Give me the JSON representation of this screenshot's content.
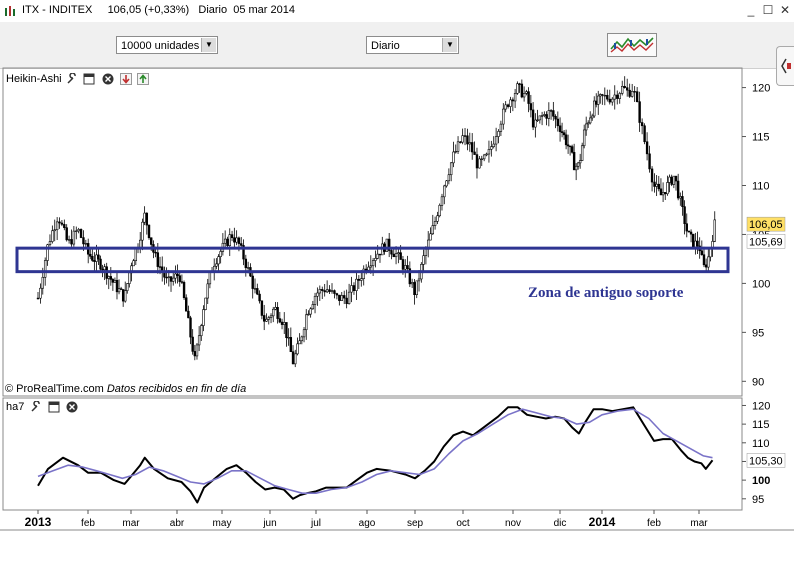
{
  "window": {
    "title_symbol": "ITX - INDITEX",
    "title_price": "106,05 (+0,33%)",
    "title_period": "Diario  05 mar 2014",
    "buttons": {
      "minimize": "_",
      "restore": "☐",
      "close": "✕"
    }
  },
  "toolbar": {
    "quantity_value": "10000 unidades",
    "period_value": "Diario",
    "chart_button_icon": "indicator-chart-icon",
    "side_button_icon": "side-panel-icon"
  },
  "top_panel": {
    "title": "Heikin-Ashi",
    "icons": [
      "wrench-icon",
      "window-icon",
      "close-icon",
      "move-down-icon",
      "move-up-icon"
    ],
    "credit_prefix": "© ProRealTime.com",
    "credit_suffix": "Datos recibidos en fin de día",
    "annotation": "Zona de antiguo soporte"
  },
  "bottom_panel": {
    "title": "ha7",
    "icons": [
      "wrench-icon",
      "window-icon",
      "close-icon"
    ]
  },
  "colors": {
    "candles": "#000000",
    "support_box": "#2e3592",
    "annotation": "#2e3592",
    "oscillator": "#000000",
    "signal": "#7a73c8",
    "last_price_bg": "#ffe066"
  },
  "chart_data": [
    {
      "type": "candlestick",
      "title": "",
      "x_tick_labels": [
        "2013",
        "feb",
        "mar",
        "abr",
        "may",
        "jun",
        "jul",
        "ago",
        "sep",
        "oct",
        "nov",
        "dic",
        "2014",
        "feb",
        "mar"
      ],
      "y_ticks": [
        90,
        95,
        100,
        105,
        110,
        115,
        120
      ],
      "ylim": [
        88.5,
        122
      ],
      "price_labels": {
        "last": "106,05",
        "previous": "105,69"
      },
      "support_zone": {
        "low": 101.2,
        "high": 103.6,
        "label": "Zona de antiguo soporte"
      },
      "close_path": [
        [
          0,
          98.5
        ],
        [
          0.2,
          104
        ],
        [
          0.4,
          107
        ],
        [
          0.6,
          104
        ],
        [
          0.8,
          105.5
        ],
        [
          1.0,
          103
        ],
        [
          1.3,
          102
        ],
        [
          1.6,
          100
        ],
        [
          1.85,
          98.5
        ],
        [
          2.0,
          102
        ],
        [
          2.15,
          104
        ],
        [
          2.3,
          107
        ],
        [
          2.5,
          103
        ],
        [
          2.8,
          100
        ],
        [
          3.05,
          101
        ],
        [
          3.25,
          96
        ],
        [
          3.4,
          92
        ],
        [
          3.6,
          98
        ],
        [
          3.8,
          102
        ],
        [
          4.0,
          103.5
        ],
        [
          4.2,
          105
        ],
        [
          4.35,
          104
        ],
        [
          4.5,
          102
        ],
        [
          4.7,
          99
        ],
        [
          4.9,
          96
        ],
        [
          5.1,
          97.5
        ],
        [
          5.3,
          96
        ],
        [
          5.5,
          92
        ],
        [
          5.65,
          94
        ],
        [
          5.8,
          97
        ],
        [
          6.0,
          99
        ],
        [
          6.2,
          99.5
        ],
        [
          6.4,
          98.5
        ],
        [
          6.6,
          98.5
        ],
        [
          6.8,
          100
        ],
        [
          7.0,
          102
        ],
        [
          7.2,
          103
        ],
        [
          7.4,
          104
        ],
        [
          7.6,
          103
        ],
        [
          7.8,
          101.5
        ],
        [
          8.0,
          99
        ],
        [
          8.2,
          103
        ],
        [
          8.4,
          106
        ],
        [
          8.6,
          110
        ],
        [
          8.8,
          113
        ],
        [
          9.0,
          115
        ],
        [
          9.15,
          114
        ],
        [
          9.3,
          112
        ],
        [
          9.5,
          113
        ],
        [
          9.7,
          116
        ],
        [
          9.9,
          118.5
        ],
        [
          10.1,
          120
        ],
        [
          10.3,
          119
        ],
        [
          10.45,
          116
        ],
        [
          10.6,
          117
        ],
        [
          10.8,
          117.5
        ],
        [
          11.0,
          116
        ],
        [
          11.2,
          114
        ],
        [
          11.35,
          112
        ],
        [
          11.45,
          112
        ],
        [
          11.6,
          116
        ],
        [
          11.8,
          118
        ],
        [
          12.0,
          119
        ],
        [
          12.2,
          119
        ],
        [
          12.4,
          120
        ],
        [
          12.5,
          119.5
        ],
        [
          12.6,
          120
        ],
        [
          12.8,
          115
        ],
        [
          13.0,
          110
        ],
        [
          13.15,
          109
        ],
        [
          13.3,
          110
        ],
        [
          13.45,
          111
        ],
        [
          13.6,
          108
        ],
        [
          13.75,
          105
        ],
        [
          13.9,
          104
        ],
        [
          14.0,
          104
        ],
        [
          14.1,
          101.5
        ],
        [
          14.2,
          102.5
        ],
        [
          14.35,
          106
        ]
      ]
    },
    {
      "type": "line",
      "title": "",
      "y_ticks": [
        95,
        100,
        105,
        110,
        115,
        120
      ],
      "ylim": [
        92,
        122
      ],
      "last_label": "105,30",
      "series": [
        {
          "color": "#000000",
          "points": [
            [
              0,
              98.5
            ],
            [
              0.2,
              103
            ],
            [
              0.5,
              106
            ],
            [
              0.8,
              104
            ],
            [
              1.0,
              102
            ],
            [
              1.3,
              102
            ],
            [
              1.6,
              100
            ],
            [
              1.85,
              99
            ],
            [
              2.0,
              101
            ],
            [
              2.2,
              104
            ],
            [
              2.3,
              106
            ],
            [
              2.5,
              103
            ],
            [
              2.8,
              100.5
            ],
            [
              3.1,
              99.5
            ],
            [
              3.3,
              97
            ],
            [
              3.45,
              94
            ],
            [
              3.6,
              98
            ],
            [
              3.9,
              101
            ],
            [
              4.1,
              103
            ],
            [
              4.3,
              104
            ],
            [
              4.5,
              102
            ],
            [
              4.7,
              99.5
            ],
            [
              4.9,
              97.5
            ],
            [
              5.1,
              98
            ],
            [
              5.3,
              97.5
            ],
            [
              5.5,
              95
            ],
            [
              5.65,
              96
            ],
            [
              5.8,
              96.5
            ],
            [
              6.0,
              97
            ],
            [
              6.2,
              98
            ],
            [
              6.4,
              98
            ],
            [
              6.6,
              98
            ],
            [
              6.8,
              100
            ],
            [
              7.0,
              102
            ],
            [
              7.2,
              103
            ],
            [
              7.5,
              102.5
            ],
            [
              7.8,
              101.5
            ],
            [
              8.0,
              100.5
            ],
            [
              8.2,
              102.5
            ],
            [
              8.4,
              105
            ],
            [
              8.6,
              109
            ],
            [
              8.8,
              112
            ],
            [
              9.0,
              113
            ],
            [
              9.2,
              112
            ],
            [
              9.4,
              114
            ],
            [
              9.7,
              117
            ],
            [
              9.9,
              119.5
            ],
            [
              10.1,
              119.5
            ],
            [
              10.3,
              117.5
            ],
            [
              10.5,
              117
            ],
            [
              10.7,
              116.5
            ],
            [
              10.9,
              117
            ],
            [
              11.1,
              116.5
            ],
            [
              11.3,
              114
            ],
            [
              11.45,
              112.5
            ],
            [
              11.6,
              115.5
            ],
            [
              11.8,
              119
            ],
            [
              12.0,
              119
            ],
            [
              12.2,
              118.5
            ],
            [
              12.4,
              119
            ],
            [
              12.6,
              119.5
            ],
            [
              12.8,
              115
            ],
            [
              13.0,
              110.5
            ],
            [
              13.2,
              111
            ],
            [
              13.4,
              111
            ],
            [
              13.6,
              108
            ],
            [
              13.75,
              106
            ],
            [
              13.9,
              105
            ],
            [
              14.05,
              104.5
            ],
            [
              14.15,
              103
            ],
            [
              14.3,
              105.3
            ]
          ]
        },
        {
          "color": "#7a73c8",
          "points": [
            [
              0,
              101
            ],
            [
              0.3,
              102.5
            ],
            [
              0.6,
              104
            ],
            [
              0.9,
              103.5
            ],
            [
              1.2,
              102.5
            ],
            [
              1.5,
              101.5
            ],
            [
              1.8,
              100.5
            ],
            [
              2.1,
              101.5
            ],
            [
              2.4,
              103.5
            ],
            [
              2.7,
              102.5
            ],
            [
              3.0,
              101
            ],
            [
              3.3,
              99.5
            ],
            [
              3.6,
              99
            ],
            [
              3.9,
              100.5
            ],
            [
              4.2,
              102.5
            ],
            [
              4.5,
              102.5
            ],
            [
              4.8,
              100.5
            ],
            [
              5.1,
              98.5
            ],
            [
              5.4,
              97.5
            ],
            [
              5.7,
              96.5
            ],
            [
              6.0,
              96.5
            ],
            [
              6.3,
              97.5
            ],
            [
              6.6,
              98
            ],
            [
              6.9,
              99.5
            ],
            [
              7.2,
              101.5
            ],
            [
              7.5,
              102.5
            ],
            [
              7.8,
              102
            ],
            [
              8.1,
              101.5
            ],
            [
              8.4,
              103
            ],
            [
              8.7,
              107
            ],
            [
              9.0,
              110.5
            ],
            [
              9.3,
              112.5
            ],
            [
              9.6,
              115
            ],
            [
              9.9,
              117.5
            ],
            [
              10.2,
              119
            ],
            [
              10.5,
              118
            ],
            [
              10.8,
              117
            ],
            [
              11.1,
              116.5
            ],
            [
              11.4,
              115
            ],
            [
              11.7,
              115.5
            ],
            [
              12.0,
              117.5
            ],
            [
              12.3,
              118.5
            ],
            [
              12.6,
              119
            ],
            [
              12.9,
              116.5
            ],
            [
              13.2,
              112.5
            ],
            [
              13.5,
              110.5
            ],
            [
              13.8,
              108.5
            ],
            [
              14.1,
              106.5
            ],
            [
              14.3,
              106
            ]
          ]
        }
      ]
    }
  ]
}
